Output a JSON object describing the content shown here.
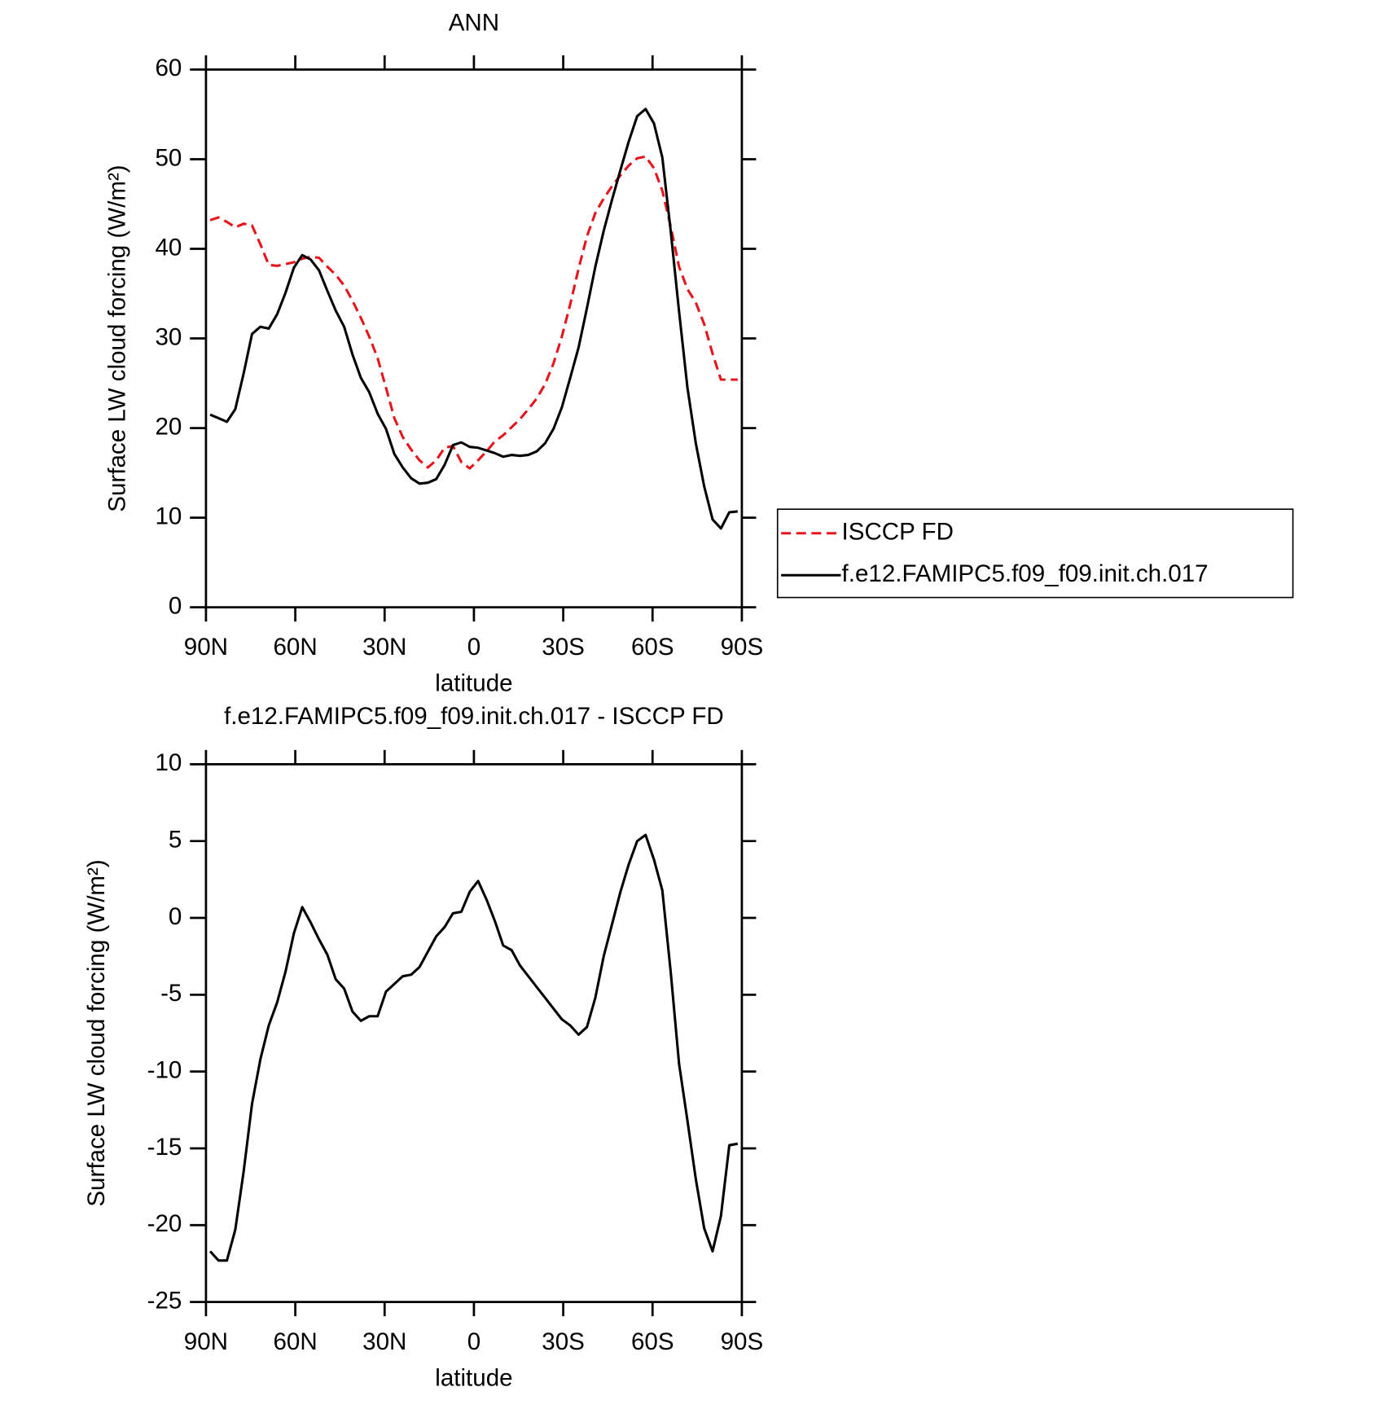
{
  "chart_data": [
    {
      "type": "line",
      "title": "ANN",
      "x_label": "latitude",
      "y_label": "Surface LW cloud forcing (W/m²)",
      "x": [
        88.59,
        85.78,
        82.97,
        80.16,
        77.34,
        74.53,
        71.72,
        68.91,
        66.09,
        63.28,
        60.47,
        57.66,
        54.84,
        52.03,
        49.22,
        46.41,
        43.59,
        40.78,
        37.97,
        35.16,
        32.34,
        29.53,
        26.72,
        23.91,
        21.09,
        18.28,
        15.47,
        12.66,
        9.84,
        7.03,
        4.22,
        1.41,
        -1.41,
        -4.22,
        -7.03,
        -9.84,
        -12.66,
        -15.47,
        -18.28,
        -21.09,
        -23.91,
        -26.72,
        -29.53,
        -32.34,
        -35.16,
        -37.97,
        -40.78,
        -43.59,
        -46.41,
        -49.22,
        -52.03,
        -54.84,
        -57.66,
        -60.47,
        -63.28,
        -66.09,
        -68.91,
        -71.72,
        -74.53,
        -77.34,
        -80.16,
        -82.97,
        -85.78,
        -88.59
      ],
      "series": [
        {
          "name": "ISCCP FD",
          "color": "#e8141b",
          "line_style": "dashed",
          "values": [
            43.2,
            43.5,
            43.0,
            42.4,
            42.8,
            42.6,
            40.5,
            38.2,
            38.1,
            38.3,
            38.5,
            38.9,
            39.1,
            39.0,
            38.0,
            37.1,
            35.9,
            34.2,
            32.3,
            30.2,
            27.8,
            24.5,
            21.1,
            19.0,
            17.6,
            16.4,
            15.6,
            16.4,
            17.8,
            18.0,
            16.2,
            15.5,
            16.4,
            17.4,
            18.5,
            19.2,
            20.1,
            21.0,
            22.1,
            23.3,
            24.9,
            27.2,
            30.2,
            33.8,
            37.8,
            41.4,
            44.0,
            45.6,
            47.0,
            48.2,
            49.3,
            50.1,
            50.3,
            49.0,
            46.5,
            42.5,
            38.0,
            35.5,
            34.0,
            31.6,
            28.3,
            25.4,
            25.4,
            25.4
          ]
        },
        {
          "name": "f.e12.FAMIPC5.f09_f09.init.ch.017",
          "color": "#000000",
          "line_style": "solid",
          "values": [
            21.5,
            21.1,
            20.7,
            22.1,
            26.1,
            30.5,
            31.3,
            31.1,
            32.7,
            35.1,
            37.9,
            39.3,
            38.8,
            37.6,
            35.3,
            33.1,
            31.3,
            28.2,
            25.6,
            24.0,
            21.6,
            19.9,
            17.1,
            15.6,
            14.4,
            13.8,
            13.9,
            14.3,
            15.9,
            18.1,
            18.4,
            17.9,
            17.8,
            17.5,
            17.2,
            16.8,
            17.0,
            16.9,
            17.0,
            17.4,
            18.3,
            19.9,
            22.3,
            25.6,
            29.0,
            33.4,
            38.0,
            42.0,
            45.5,
            48.8,
            52.0,
            54.8,
            55.6,
            54.0,
            50.2,
            42.0,
            33.0,
            24.5,
            18.3,
            13.5,
            9.8,
            8.8,
            10.6,
            10.7
          ]
        }
      ],
      "xlim": [
        90,
        -90
      ],
      "xticks": [
        {
          "value": 90,
          "label": "90N"
        },
        {
          "value": 60,
          "label": "60N"
        },
        {
          "value": 30,
          "label": "30N"
        },
        0,
        {
          "value": -30,
          "label": "30S"
        },
        {
          "value": -60,
          "label": "60S"
        },
        {
          "value": -90,
          "label": "90S"
        }
      ],
      "ylim": [
        0,
        60
      ],
      "yticks": [
        0,
        10,
        20,
        30,
        40,
        50,
        60
      ],
      "legend": "right"
    },
    {
      "type": "line",
      "title": "f.e12.FAMIPC5.f09_f09.init.ch.017 - ISCCP FD",
      "x_label": "latitude",
      "y_label": "Surface LW cloud forcing (W/m²)",
      "x": [
        88.59,
        85.78,
        82.97,
        80.16,
        77.34,
        74.53,
        71.72,
        68.91,
        66.09,
        63.28,
        60.47,
        57.66,
        54.84,
        52.03,
        49.22,
        46.41,
        43.59,
        40.78,
        37.97,
        35.16,
        32.34,
        29.53,
        26.72,
        23.91,
        21.09,
        18.28,
        15.47,
        12.66,
        9.84,
        7.03,
        4.22,
        1.41,
        -1.41,
        -4.22,
        -7.03,
        -9.84,
        -12.66,
        -15.47,
        -18.28,
        -21.09,
        -23.91,
        -26.72,
        -29.53,
        -32.34,
        -35.16,
        -37.97,
        -40.78,
        -43.59,
        -46.41,
        -49.22,
        -52.03,
        -54.84,
        -57.66,
        -60.47,
        -63.28,
        -66.09,
        -68.91,
        -71.72,
        -74.53,
        -77.34,
        -80.16,
        -82.97,
        -85.78,
        -88.59
      ],
      "series": [
        {
          "color": "#000000",
          "line_style": "solid",
          "values": [
            -21.7,
            -22.3,
            -22.3,
            -20.3,
            -16.5,
            -12.1,
            -9.2,
            -7.0,
            -5.5,
            -3.5,
            -1.0,
            0.7,
            -0.3,
            -1.4,
            -2.4,
            -4.0,
            -4.6,
            -6.1,
            -6.7,
            -6.4,
            -6.4,
            -4.8,
            -4.3,
            -3.8,
            -3.7,
            -3.2,
            -2.2,
            -1.2,
            -0.6,
            0.3,
            0.4,
            1.7,
            2.4,
            1.2,
            -0.2,
            -1.8,
            -2.1,
            -3.1,
            -3.8,
            -4.5,
            -5.2,
            -5.9,
            -6.6,
            -7.0,
            -7.6,
            -7.1,
            -5.2,
            -2.5,
            -0.4,
            1.7,
            3.5,
            5.0,
            5.4,
            3.8,
            1.8,
            -3.5,
            -9.5,
            -13.2,
            -17.0,
            -20.2,
            -21.7,
            -19.4,
            -14.8,
            -14.7
          ]
        }
      ],
      "xlim": [
        90,
        -90
      ],
      "xticks": [
        {
          "value": 90,
          "label": "90N"
        },
        {
          "value": 60,
          "label": "60N"
        },
        {
          "value": 30,
          "label": "30N"
        },
        0,
        {
          "value": -30,
          "label": "30S"
        },
        {
          "value": -60,
          "label": "60S"
        },
        {
          "value": -90,
          "label": "90S"
        }
      ],
      "ylim": [
        -25,
        10
      ],
      "yticks": [
        -25,
        -20,
        -15,
        -10,
        -5,
        0,
        5,
        10
      ]
    }
  ]
}
